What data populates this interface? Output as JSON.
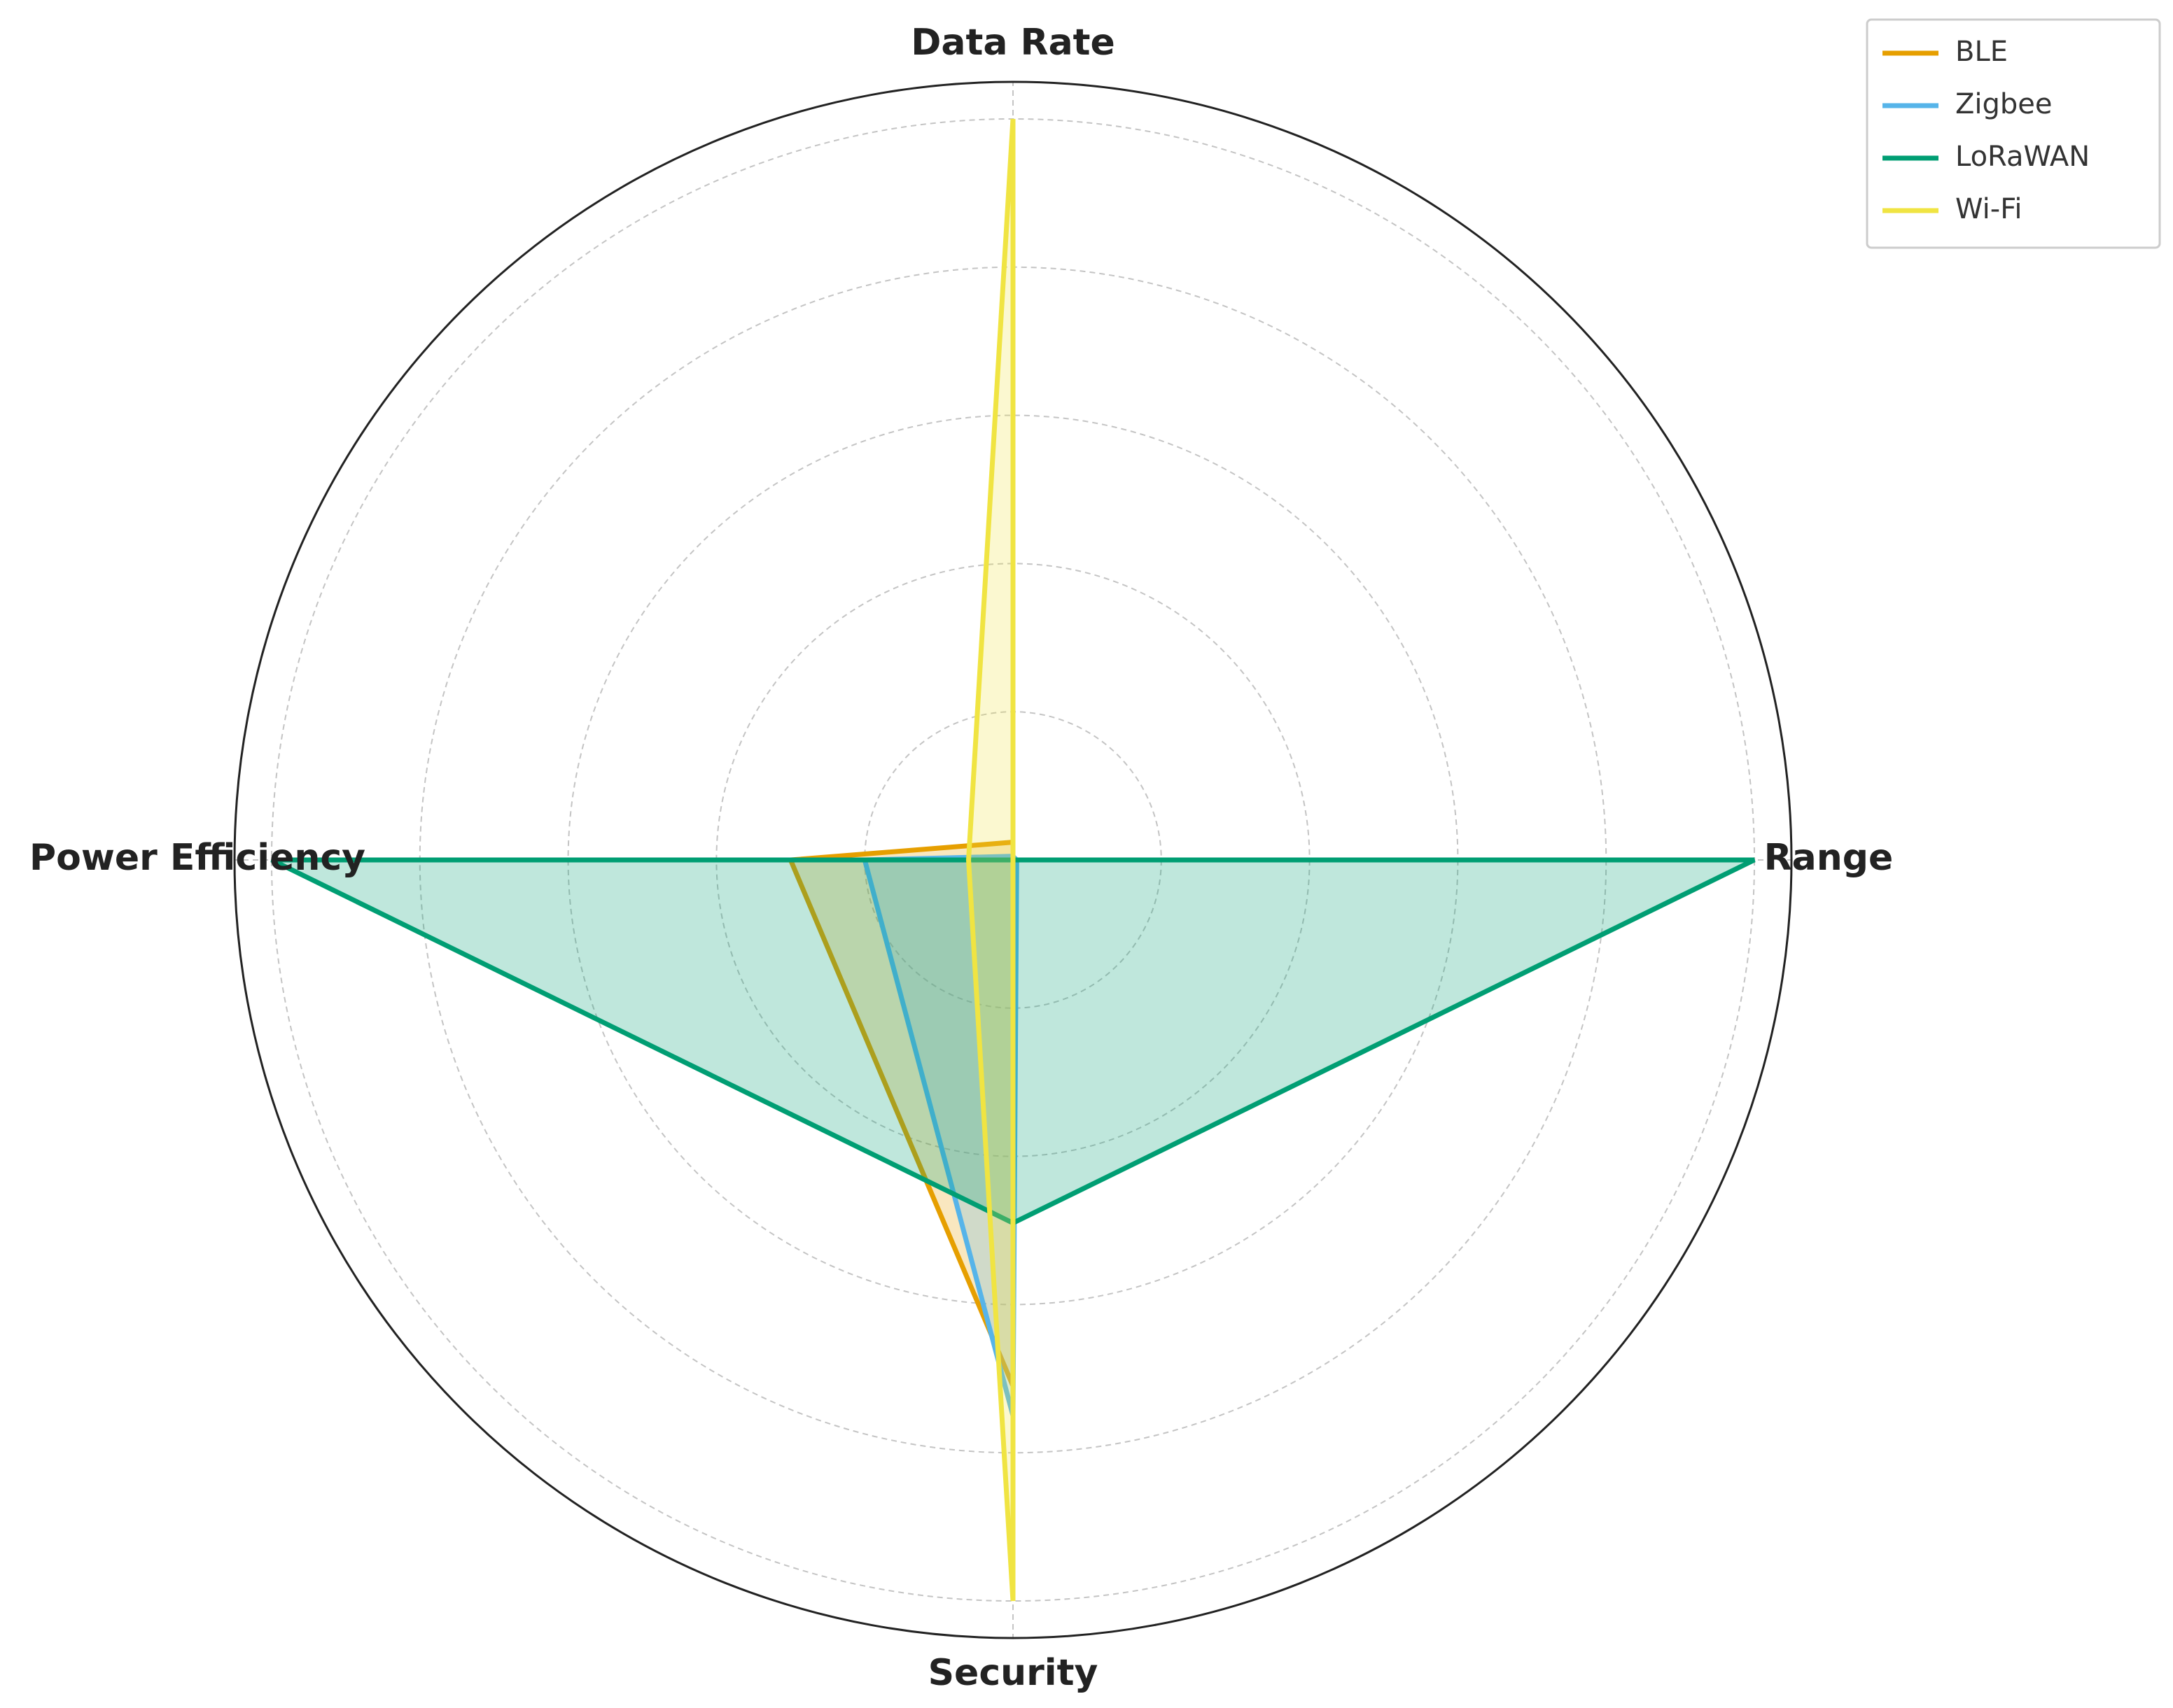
{
  "chart_data": {
    "type": "radar",
    "categories": [
      "Data Rate",
      "Range",
      "Security",
      "Power Efficiency"
    ],
    "series": [
      {
        "name": "BLE",
        "color": "#E69F00",
        "values": [
          0.024,
          0.0,
          0.71,
          0.3
        ]
      },
      {
        "name": "Zigbee",
        "color": "#56B4E9",
        "values": [
          0.005,
          0.005,
          0.75,
          0.2
        ]
      },
      {
        "name": "LoRaWAN",
        "color": "#009E73",
        "values": [
          0.0,
          1.0,
          0.49,
          1.0
        ]
      },
      {
        "name": "Wi-Fi",
        "color": "#F0E442",
        "values": [
          1.0,
          0.0,
          1.0,
          0.06
        ]
      }
    ],
    "ylim": [
      0,
      1.05
    ],
    "yticks": [
      0.2,
      0.4,
      0.6,
      0.8,
      1.0
    ],
    "grid": true,
    "legend": "upper right"
  }
}
